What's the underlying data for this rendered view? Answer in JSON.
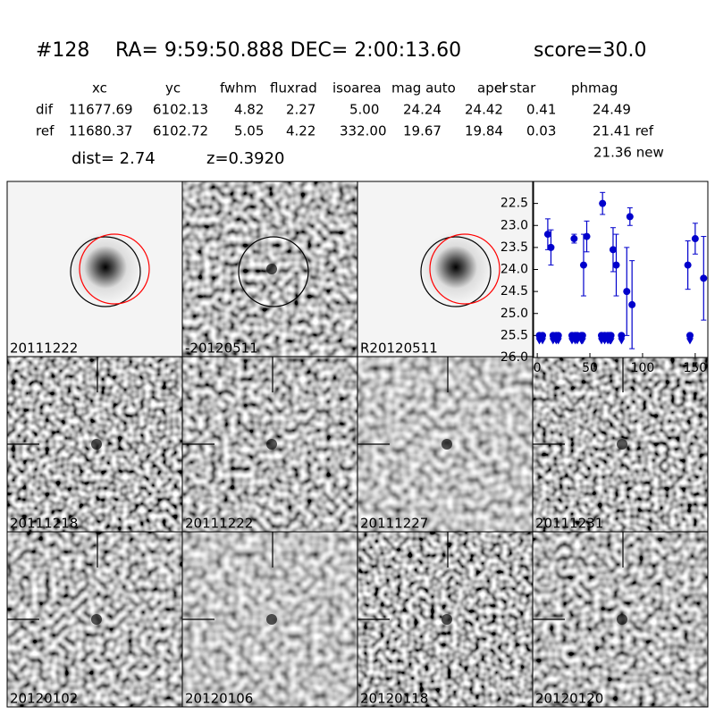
{
  "header": {
    "id": "#128",
    "coords": "RA= 9:59:50.888 DEC= 2:00:13.60",
    "score": "score=30.0"
  },
  "table": {
    "columns": [
      "xc",
      "yc",
      "fwhm",
      "fluxrad",
      "isoarea",
      "mag auto",
      "aper",
      "cl star",
      "phmag"
    ],
    "rows": [
      [
        "dif",
        "11677.69",
        "6102.13",
        "4.82",
        "2.27",
        "5.00",
        "24.24",
        "24.42",
        "0.41",
        "24.49"
      ],
      [
        "ref",
        "11680.37",
        "6102.72",
        "5.05",
        "4.22",
        "332.00",
        "19.67",
        "19.84",
        "0.03",
        "21.41 ref"
      ]
    ],
    "extra": "21.36 new"
  },
  "dist": "dist=  2.74",
  "redshift": "z=0.3920",
  "stamps": [
    {
      "label": "20111222",
      "kind": "template"
    },
    {
      "label": "-20120511",
      "kind": "difference"
    },
    {
      "label": "R20120511",
      "kind": "template"
    },
    {
      "label": "20111218",
      "kind": "noise"
    },
    {
      "label": "20111222",
      "kind": "noise",
      "label_color": "#ff0000"
    },
    {
      "label": "20111227",
      "kind": "noise"
    },
    {
      "label": "20111231",
      "kind": "noise"
    },
    {
      "label": "20120102",
      "kind": "noise"
    },
    {
      "label": "20120106",
      "kind": "noise"
    },
    {
      "label": "20120118",
      "kind": "noise"
    },
    {
      "label": "20120120",
      "kind": "noise"
    }
  ],
  "chart_data": {
    "type": "scatter",
    "color": "#0000cc",
    "xlim": [
      -3.5,
      162
    ],
    "ylim": [
      26.0,
      22.0
    ],
    "xticks": [
      0,
      50,
      100,
      150
    ],
    "yticks": [
      22.5,
      {
        "value": 23,
        "label": "23.0"
      },
      23.5,
      {
        "value": 24,
        "label": "24.0"
      },
      24.5,
      {
        "value": 25,
        "label": "25.0"
      },
      25.5,
      {
        "value": 26,
        "label": "26.0"
      }
    ],
    "points": {
      "x": [
        10,
        13,
        35,
        44,
        47,
        62,
        72,
        75,
        85,
        88,
        90,
        143,
        150,
        158
      ],
      "values": [
        23.2,
        23.5,
        23.3,
        23.9,
        23.25,
        22.5,
        23.55,
        23.9,
        24.5,
        22.8,
        24.8,
        23.9,
        23.3,
        24.2
      ],
      "errors": [
        0.35,
        0.4,
        0.1,
        0.7,
        0.35,
        0.25,
        0.5,
        0.7,
        1.0,
        0.2,
        1.0,
        0.55,
        0.35,
        0.95
      ]
    },
    "limits": {
      "x": [
        2,
        5,
        15,
        18,
        20,
        33,
        36,
        38,
        42,
        43,
        61,
        64,
        67,
        69,
        70,
        80,
        145
      ],
      "values": [
        25.5,
        25.5,
        25.5,
        25.5,
        25.5,
        25.5,
        25.5,
        25.5,
        25.5,
        25.5,
        25.5,
        25.5,
        25.5,
        25.5,
        25.5,
        25.5,
        25.5
      ]
    }
  }
}
